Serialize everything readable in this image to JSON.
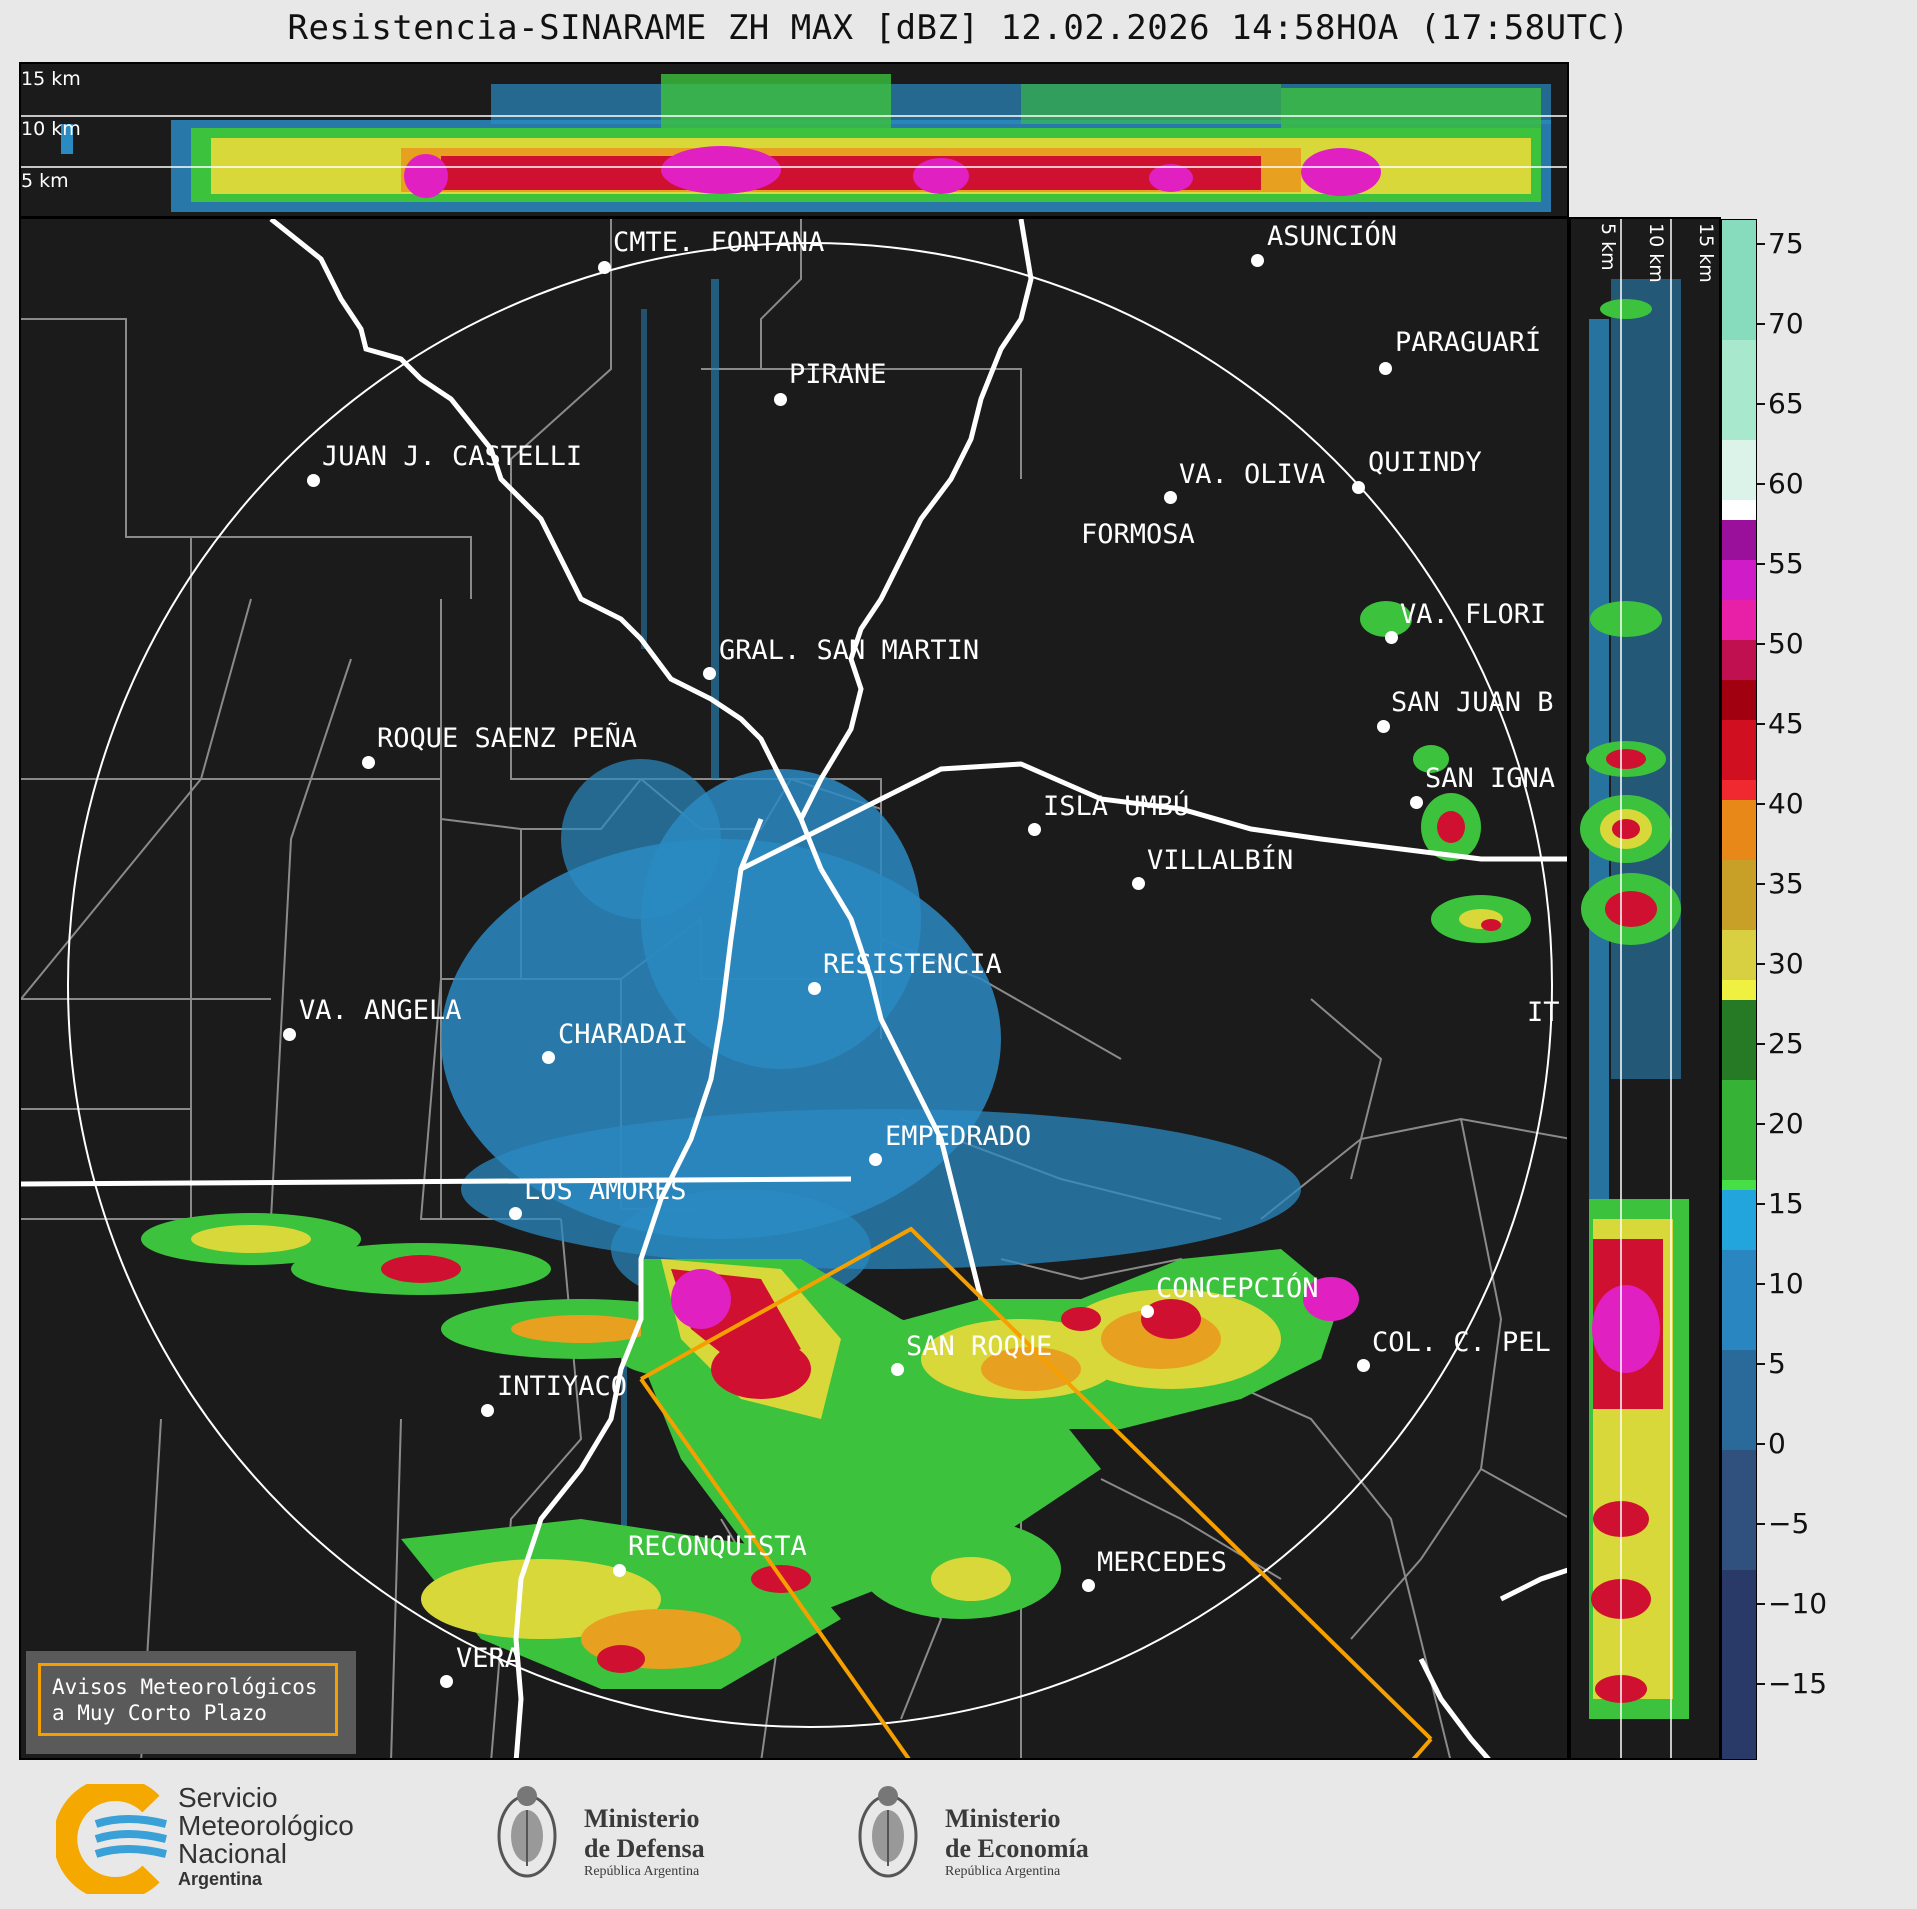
{
  "title": "Resistencia-SINARAME ZH MAX [dBZ] 12.02.2026 14:58HOA (17:58UTC)",
  "top_panel": {
    "altitude_labels": [
      "15 km",
      "10 km",
      "5 km"
    ]
  },
  "side_panel": {
    "altitude_labels": [
      "5 km",
      "10 km",
      "15 km"
    ]
  },
  "colorbar": {
    "ticks": [
      "75",
      "70",
      "65",
      "60",
      "55",
      "50",
      "45",
      "40",
      "35",
      "30",
      "25",
      "20",
      "15",
      "10",
      "5",
      "0",
      "−5",
      "−10",
      "−15"
    ]
  },
  "cities": [
    {
      "name": "CMTE. FONTANA"
    },
    {
      "name": "ASUNCIÓN"
    },
    {
      "name": "PARAGUARÍ"
    },
    {
      "name": "PIRANE"
    },
    {
      "name": "JUAN J. CASTELLI"
    },
    {
      "name": "VA. OLIVA"
    },
    {
      "name": "QUIINDY"
    },
    {
      "name": "FORMOSA"
    },
    {
      "name": "VA. FLORI"
    },
    {
      "name": "GRAL. SAN MARTIN"
    },
    {
      "name": "SAN JUAN B"
    },
    {
      "name": "ROQUE SAENZ PEÑA"
    },
    {
      "name": "SAN IGNA"
    },
    {
      "name": "ISLA UMBÚ"
    },
    {
      "name": "VILLALBÍN"
    },
    {
      "name": "RESISTENCIA"
    },
    {
      "name": "VA. ANGELA"
    },
    {
      "name": "CHARADAI"
    },
    {
      "name": "IT"
    },
    {
      "name": "EMPEDRADO"
    },
    {
      "name": "LOS AMORES"
    },
    {
      "name": "CONCEPCIÓN"
    },
    {
      "name": "SAN ROQUE"
    },
    {
      "name": "COL. C. PEL"
    },
    {
      "name": "INTIYACO"
    },
    {
      "name": "RECONQUISTA"
    },
    {
      "name": "MERCEDES"
    },
    {
      "name": "VERA"
    }
  ],
  "warning_box": {
    "line1": "Avisos Meteorológicos",
    "line2": "a Muy Corto Plazo"
  },
  "logos": {
    "smn": {
      "line1": "Servicio",
      "line2": "Meteorológico",
      "line3": "Nacional",
      "line4": "Argentina"
    },
    "defensa": {
      "line1": "Ministerio",
      "line2": "de Defensa",
      "line3": "República Argentina"
    },
    "economia": {
      "line1": "Ministerio",
      "line2": "de Economía",
      "line3": "República Argentina"
    }
  },
  "colors": {
    "background": "#1b1b1b",
    "warning_polygon": "#f5a000",
    "river": "#ffffff",
    "borders": "#888888"
  }
}
